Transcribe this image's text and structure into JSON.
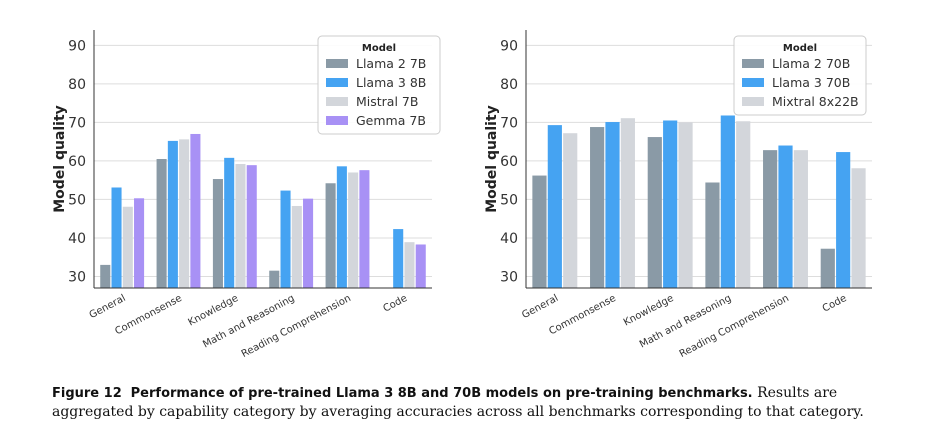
{
  "caption": {
    "label": "Figure 12",
    "title": "Performance of pre-trained Llama 3 8B and 70B models on pre-training benchmarks.",
    "text": "Results are aggregated by capability category by averaging accuracies across all benchmarks corresponding to that category."
  },
  "chart_data": [
    {
      "type": "bar",
      "ylabel": "Model quality",
      "xlabel": "",
      "ylim": [
        27,
        94
      ],
      "yticks": [
        30,
        40,
        50,
        60,
        70,
        80,
        90
      ],
      "grid": true,
      "legend": {
        "title": "Model",
        "placement": "top-right"
      },
      "categories": [
        "General",
        "Commonsense",
        "Knowledge",
        "Math and Reasoning",
        "Reading Comprehension",
        "Code"
      ],
      "series": [
        {
          "name": "Llama 2 7B",
          "color": "#8a9aa6",
          "values": [
            33.0,
            60.5,
            55.3,
            31.5,
            54.2,
            null
          ]
        },
        {
          "name": "Llama 3 8B",
          "color": "#45a3f2",
          "values": [
            53.1,
            65.2,
            60.8,
            52.3,
            58.6,
            42.3
          ]
        },
        {
          "name": "Mistral 7B",
          "color": "#d3d6db",
          "values": [
            48.1,
            65.6,
            59.2,
            48.3,
            57.0,
            38.9
          ]
        },
        {
          "name": "Gemma 7B",
          "color": "#a891f5",
          "values": [
            50.3,
            67.0,
            58.9,
            50.2,
            57.6,
            38.3
          ]
        }
      ]
    },
    {
      "type": "bar",
      "ylabel": "Model quality",
      "xlabel": "",
      "ylim": [
        27,
        94
      ],
      "yticks": [
        30,
        40,
        50,
        60,
        70,
        80,
        90
      ],
      "grid": true,
      "legend": {
        "title": "Model",
        "placement": "top-right"
      },
      "categories": [
        "General",
        "Commonsense",
        "Knowledge",
        "Math and Reasoning",
        "Reading Comprehension",
        "Code"
      ],
      "series": [
        {
          "name": "Llama 2 70B",
          "color": "#8a9aa6",
          "values": [
            56.2,
            68.8,
            66.2,
            54.4,
            62.8,
            37.2
          ]
        },
        {
          "name": "Llama 3 70B",
          "color": "#45a3f2",
          "values": [
            69.3,
            70.1,
            70.5,
            71.8,
            64.0,
            62.3
          ]
        },
        {
          "name": "Mixtral 8x22B",
          "color": "#d3d6db",
          "values": [
            67.2,
            71.1,
            70.0,
            70.3,
            62.8,
            58.1
          ]
        }
      ]
    }
  ]
}
